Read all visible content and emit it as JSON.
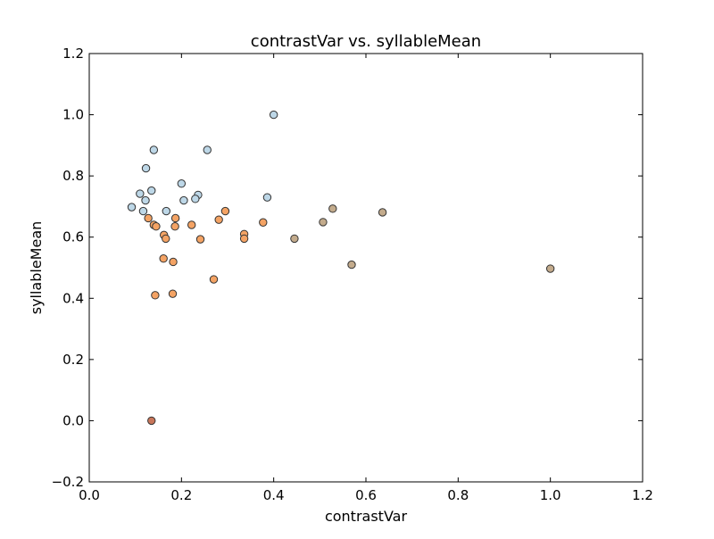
{
  "chart_data": {
    "type": "scatter",
    "title": "contrastVar vs. syllableMean",
    "xlabel": "contrastVar",
    "ylabel": "syllableMean",
    "xlim": [
      0.0,
      1.2
    ],
    "ylim": [
      -0.2,
      1.2
    ],
    "x_ticks": [
      0.0,
      0.2,
      0.4,
      0.6,
      0.8,
      1.0,
      1.2
    ],
    "y_ticks": [
      -0.2,
      0.0,
      0.2,
      0.4,
      0.6,
      0.8,
      1.0,
      1.2
    ],
    "x_tick_labels": [
      "0.0",
      "0.2",
      "0.4",
      "0.6",
      "0.8",
      "1.0",
      "1.2"
    ],
    "y_tick_labels": [
      "−0.2",
      "0.0",
      "0.2",
      "0.4",
      "0.6",
      "0.8",
      "1.0",
      "1.2"
    ],
    "grid": false,
    "legend": "none",
    "marker_edge_color": "#333333",
    "series": [
      {
        "color": "#bdd7e7",
        "points": [
          [
            0.4,
            1.0
          ],
          [
            0.14,
            0.885
          ],
          [
            0.256,
            0.885
          ],
          [
            0.123,
            0.825
          ],
          [
            0.2,
            0.775
          ],
          [
            0.135,
            0.752
          ],
          [
            0.11,
            0.742
          ],
          [
            0.236,
            0.738
          ],
          [
            0.386,
            0.73
          ],
          [
            0.122,
            0.72
          ],
          [
            0.205,
            0.72
          ],
          [
            0.23,
            0.725
          ],
          [
            0.092,
            0.698
          ],
          [
            0.117,
            0.685
          ],
          [
            0.167,
            0.685
          ]
        ]
      },
      {
        "color": "#f4a364",
        "points": [
          [
            0.128,
            0.662
          ],
          [
            0.187,
            0.662
          ],
          [
            0.295,
            0.685
          ],
          [
            0.281,
            0.657
          ],
          [
            0.377,
            0.648
          ],
          [
            0.14,
            0.64
          ],
          [
            0.145,
            0.635
          ],
          [
            0.186,
            0.635
          ],
          [
            0.222,
            0.64
          ],
          [
            0.336,
            0.61
          ],
          [
            0.336,
            0.595
          ],
          [
            0.162,
            0.607
          ],
          [
            0.166,
            0.595
          ],
          [
            0.241,
            0.593
          ],
          [
            0.161,
            0.53
          ],
          [
            0.182,
            0.519
          ],
          [
            0.27,
            0.462
          ],
          [
            0.143,
            0.41
          ],
          [
            0.181,
            0.415
          ]
        ]
      },
      {
        "color": "#c3ab8c",
        "points": [
          [
            0.528,
            0.693
          ],
          [
            0.636,
            0.681
          ],
          [
            0.507,
            0.649
          ],
          [
            0.445,
            0.595
          ],
          [
            0.569,
            0.51
          ],
          [
            1.0,
            0.497
          ]
        ]
      },
      {
        "color": "#c8765a",
        "points": [
          [
            0.135,
            0.0
          ]
        ]
      }
    ]
  }
}
